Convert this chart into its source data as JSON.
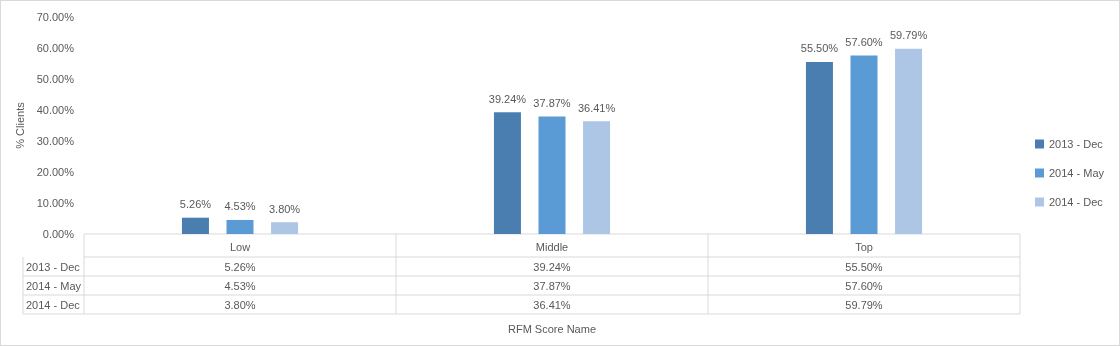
{
  "chart_data": {
    "type": "bar",
    "annotations": [
      "RFM Score Name"
    ],
    "ylabel": "% Clients",
    "categories": [
      "Low",
      "Middle",
      "Top"
    ],
    "series": [
      {
        "name": "2013 - Dec",
        "color": "#4a7eb0",
        "values": [
          5.26,
          39.24,
          55.5
        ],
        "value_labels": [
          "5.26%",
          "39.24%",
          "55.50%"
        ]
      },
      {
        "name": "2014 - May",
        "color": "#5b9bd5",
        "values": [
          4.53,
          37.87,
          57.6
        ],
        "value_labels": [
          "4.53%",
          "37.87%",
          "57.60%"
        ]
      },
      {
        "name": "2014 - Dec",
        "color": "#adc6e5",
        "values": [
          3.8,
          36.41,
          59.79
        ],
        "value_labels": [
          "3.80%",
          "36.41%",
          "59.79%"
        ]
      }
    ],
    "ylim": [
      0,
      70
    ],
    "yticks": [
      {
        "value": 0,
        "label": "0.00%"
      },
      {
        "value": 10,
        "label": "10.00%"
      },
      {
        "value": 20,
        "label": "20.00%"
      },
      {
        "value": 30,
        "label": "30.00%"
      },
      {
        "value": 40,
        "label": "40.00%"
      },
      {
        "value": 50,
        "label": "50.00%"
      },
      {
        "value": 60,
        "label": "60.00%"
      },
      {
        "value": 70,
        "label": "70.00%"
      }
    ],
    "grid": false,
    "legend": "right"
  }
}
